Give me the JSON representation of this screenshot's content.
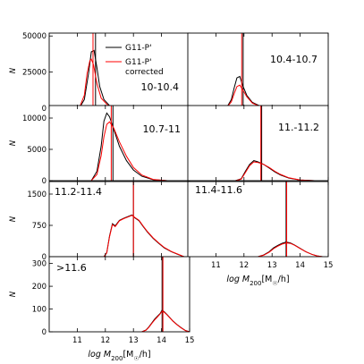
{
  "chart_data": {
    "type": "line",
    "legend": {
      "position": "top-right of first panel",
      "entries": [
        {
          "label": "G11-P'",
          "color": "#000000"
        },
        {
          "label_lines": [
            "G11-P'",
            "corrected"
          ],
          "color": "#ff0000"
        }
      ]
    },
    "xlabel_text": "log M",
    "xlabel_sub": "200",
    "xlabel_units": "[M",
    "xlabel_sun": "☉",
    "xlabel_tail": "/h]",
    "ylabel": "N",
    "x_ticks": [
      "11",
      "12",
      "13",
      "14",
      "15"
    ],
    "xlim": [
      10,
      15
    ],
    "panels": [
      {
        "label": "10-10.4",
        "yticks": [
          "0",
          "25000",
          "50000"
        ],
        "ylim": [
          0,
          52000
        ],
        "black": {
          "vline": 11.65,
          "x": [
            10.9,
            11.1,
            11.25,
            11.4,
            11.5,
            11.6,
            11.7,
            11.8,
            11.95,
            12.15,
            12.4,
            12.7,
            13.0
          ],
          "y": [
            0,
            1000,
            6000,
            24000,
            39000,
            40000,
            28000,
            15000,
            6000,
            1800,
            400,
            80,
            0
          ]
        },
        "red": {
          "vline": 11.56,
          "x": [
            10.9,
            11.1,
            11.25,
            11.35,
            11.45,
            11.5,
            11.58,
            11.7,
            11.85,
            12.1,
            12.4,
            12.8
          ],
          "y": [
            0,
            1500,
            9000,
            24000,
            33000,
            34000,
            30000,
            17000,
            7000,
            1800,
            300,
            0
          ]
        }
      },
      {
        "label": "10.4-10.7",
        "yticks": [],
        "ylim": [
          0,
          52000
        ],
        "black": {
          "vline": 11.97,
          "x": [
            11.2,
            11.4,
            11.55,
            11.65,
            11.75,
            11.85,
            11.95,
            12.1,
            12.3,
            12.6,
            13.0,
            13.4
          ],
          "y": [
            0,
            1000,
            6000,
            14000,
            21000,
            22000,
            16000,
            9000,
            4000,
            1300,
            300,
            0
          ]
        },
        "red": {
          "vline": 11.92,
          "x": [
            11.2,
            11.4,
            11.55,
            11.65,
            11.75,
            11.85,
            11.95,
            12.1,
            12.3,
            12.6,
            13.0,
            13.4
          ],
          "y": [
            0,
            800,
            4500,
            10000,
            15000,
            16000,
            13000,
            8000,
            3500,
            1100,
            250,
            0
          ]
        }
      },
      {
        "label": "10.7-11",
        "yticks": [
          "0",
          "5000",
          "10000"
        ],
        "ylim": [
          0,
          12000
        ],
        "black": {
          "vline": 12.27,
          "x": [
            11.5,
            11.7,
            11.85,
            11.95,
            12.05,
            12.15,
            12.3,
            12.5,
            12.75,
            13.0,
            13.3,
            13.7,
            14.2
          ],
          "y": [
            0,
            1500,
            5500,
            9500,
            10800,
            10200,
            8200,
            5500,
            3200,
            1700,
            700,
            150,
            0
          ]
        },
        "red": {
          "vline": 12.21,
          "x": [
            11.5,
            11.7,
            11.85,
            11.95,
            12.05,
            12.15,
            12.3,
            12.5,
            12.75,
            13.0,
            13.3,
            13.7,
            14.2
          ],
          "y": [
            0,
            1000,
            4000,
            7000,
            9000,
            9400,
            8400,
            6200,
            3900,
            2100,
            900,
            200,
            0
          ]
        }
      },
      {
        "label": "11.-11.2",
        "yticks": [],
        "ylim": [
          0,
          12000
        ],
        "black": {
          "vline": 12.63,
          "x": [
            11.7,
            11.9,
            12.05,
            12.2,
            12.35,
            12.5,
            12.7,
            12.9,
            13.1,
            13.3,
            13.6,
            14.0,
            14.5
          ],
          "y": [
            0,
            300,
            1500,
            2600,
            3200,
            3000,
            2600,
            2000,
            1400,
            900,
            400,
            100,
            0
          ]
        },
        "red": {
          "vline": 12.6,
          "x": [
            11.7,
            11.9,
            12.05,
            12.2,
            12.35,
            12.5,
            12.7,
            12.9,
            13.1,
            13.3,
            13.6,
            14.0,
            14.5
          ],
          "y": [
            0,
            250,
            1300,
            2400,
            3000,
            2900,
            2600,
            2100,
            1500,
            1000,
            450,
            120,
            0
          ]
        }
      },
      {
        "label": "11.2-11.4",
        "yticks": [
          "0",
          "750",
          "1500"
        ],
        "ylim": [
          0,
          1800
        ],
        "black": {
          "vline": 13.0,
          "x": [
            11.95,
            12.05,
            12.15,
            12.25,
            12.35,
            12.5,
            12.65,
            12.8,
            12.95,
            13.05,
            13.2,
            13.35,
            13.5,
            13.7,
            13.9,
            14.1,
            14.35,
            14.6,
            14.8
          ],
          "y": [
            0,
            100,
            500,
            790,
            740,
            870,
            920,
            960,
            1000,
            930,
            860,
            720,
            590,
            440,
            320,
            210,
            120,
            50,
            0
          ]
        },
        "red": {
          "vline": 13.0,
          "x": [
            11.95,
            12.05,
            12.15,
            12.25,
            12.35,
            12.5,
            12.65,
            12.8,
            12.95,
            13.05,
            13.2,
            13.35,
            13.5,
            13.7,
            13.9,
            14.1,
            14.35,
            14.6,
            14.8
          ],
          "y": [
            0,
            90,
            480,
            770,
            720,
            860,
            910,
            950,
            990,
            940,
            870,
            730,
            600,
            450,
            330,
            220,
            125,
            55,
            0
          ]
        }
      },
      {
        "label": "11.4-11.6",
        "yticks": [],
        "ylim": [
          0,
          1800
        ],
        "black": {
          "vline": 13.5,
          "x": [
            12.5,
            12.7,
            12.9,
            13.05,
            13.2,
            13.35,
            13.5,
            13.65,
            13.8,
            14.0,
            14.2,
            14.4,
            14.6,
            14.8
          ],
          "y": [
            0,
            40,
            120,
            210,
            270,
            320,
            350,
            330,
            280,
            200,
            120,
            60,
            20,
            0
          ]
        },
        "red": {
          "vline": 13.52,
          "x": [
            12.5,
            12.7,
            12.9,
            13.05,
            13.2,
            13.35,
            13.5,
            13.65,
            13.8,
            14.0,
            14.2,
            14.4,
            14.6,
            14.8
          ],
          "y": [
            0,
            35,
            110,
            190,
            250,
            300,
            330,
            320,
            275,
            195,
            120,
            60,
            20,
            0
          ]
        }
      },
      {
        "label": ">11.6",
        "yticks": [
          "0",
          "100",
          "200",
          "300"
        ],
        "ylim": [
          0,
          330
        ],
        "black": {
          "vline": 14.02,
          "x": [
            13.3,
            13.45,
            13.55,
            13.65,
            13.75,
            13.85,
            13.95,
            14.02,
            14.1,
            14.2,
            14.3,
            14.4,
            14.55,
            14.7,
            14.85,
            15.0
          ],
          "y": [
            0,
            8,
            22,
            38,
            55,
            68,
            80,
            95,
            88,
            75,
            62,
            48,
            32,
            18,
            6,
            0
          ]
        },
        "red": {
          "vline": 14.05,
          "x": [
            13.3,
            13.45,
            13.55,
            13.65,
            13.75,
            13.85,
            13.95,
            14.02,
            14.1,
            14.2,
            14.3,
            14.4,
            14.55,
            14.7,
            14.85,
            15.0
          ],
          "y": [
            0,
            7,
            20,
            36,
            52,
            65,
            78,
            90,
            86,
            74,
            61,
            47,
            31,
            17,
            5,
            0
          ]
        }
      }
    ]
  }
}
